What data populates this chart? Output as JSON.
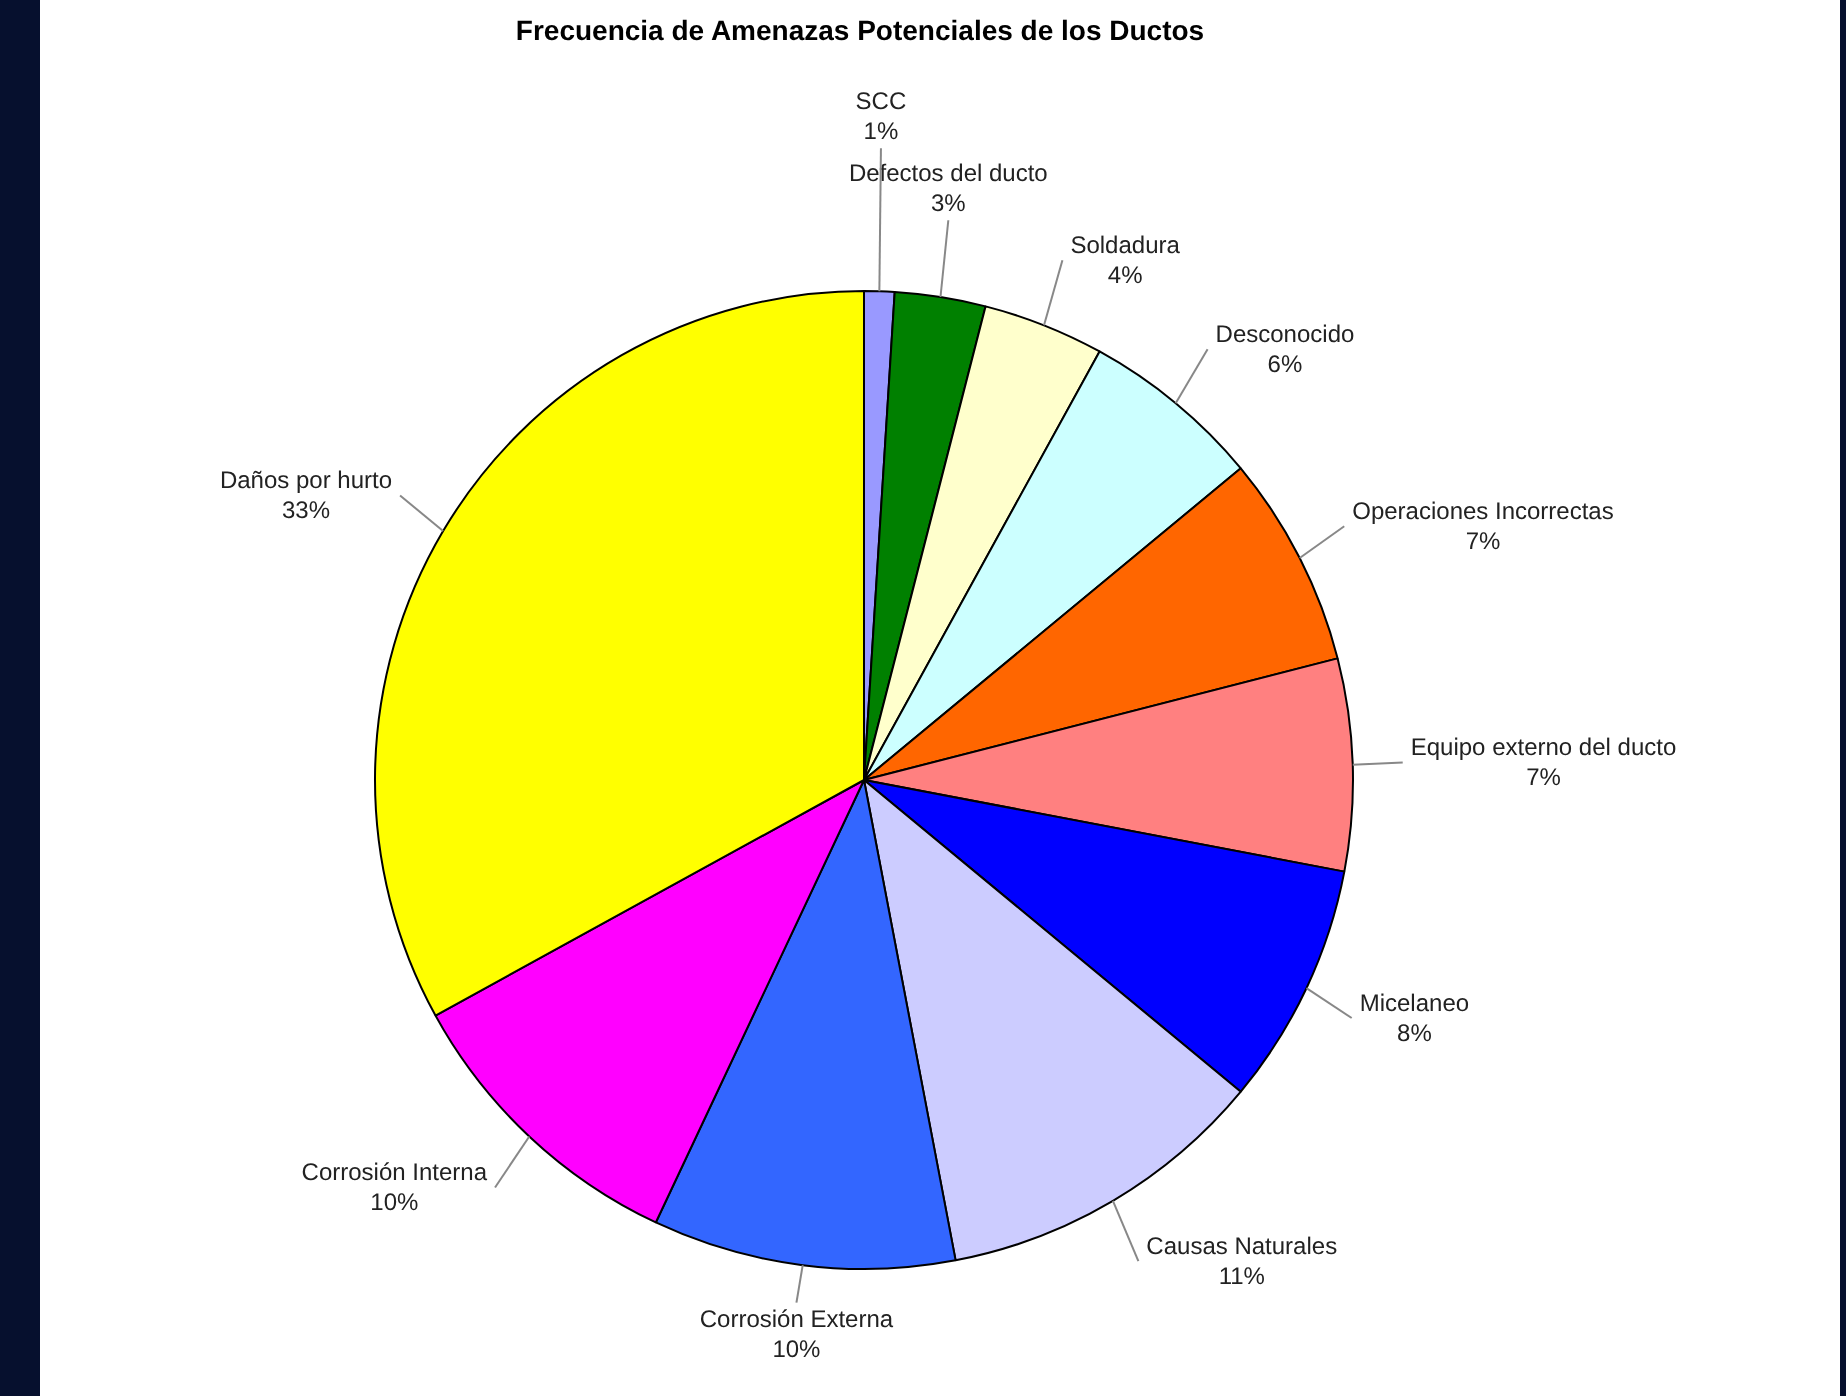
{
  "chart_data": {
    "type": "pie",
    "title": "Frecuencia de Amenazas Potenciales de los Ductos",
    "categories": [
      "SCC",
      "Defectos del ducto",
      "Soldadura",
      "Desconocido",
      "Operaciones Incorrectas",
      "Equipo externo del ducto",
      "Micelaneo",
      "Causas Naturales",
      "Corrosión Externa",
      "Corrosión Interna",
      "Daños por hurto"
    ],
    "values": [
      1,
      3,
      4,
      6,
      7,
      7,
      8,
      11,
      10,
      10,
      33
    ],
    "value_labels": [
      "1%",
      "3%",
      "4%",
      "6%",
      "7%",
      "7%",
      "8%",
      "11%",
      "10%",
      "10%",
      "33%"
    ],
    "colors": [
      "#9999ff",
      "#008000",
      "#ffffcc",
      "#ccffff",
      "#ff6600",
      "#ff8080",
      "#0000ff",
      "#ccccff",
      "#3366ff",
      "#ff00ff",
      "#ffff00"
    ],
    "legend": false
  }
}
